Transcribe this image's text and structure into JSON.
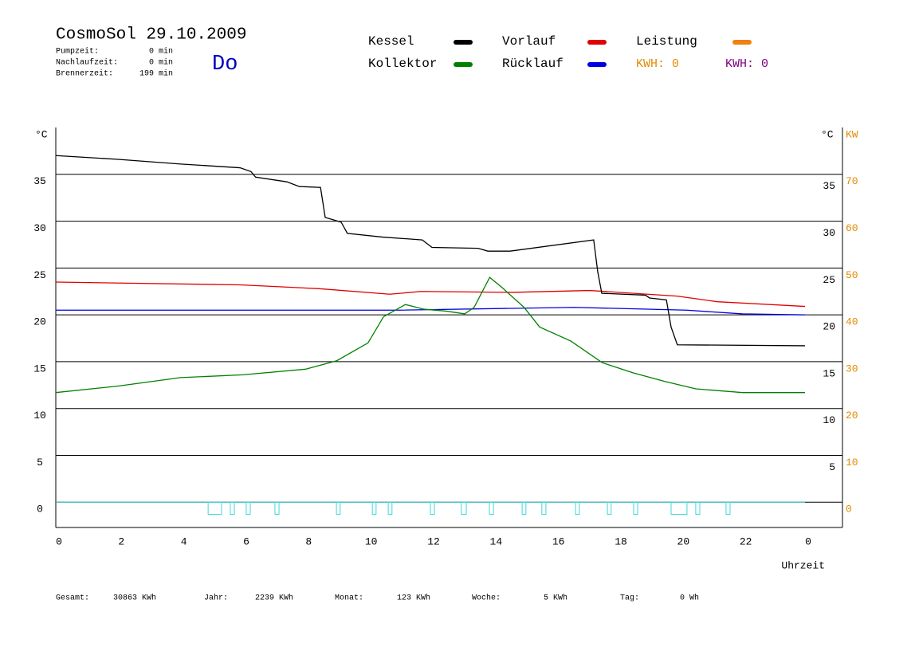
{
  "header": {
    "title": "CosmoSol 29.10.2009",
    "day": "Do",
    "stats": [
      {
        "label": "Pumpzeit:",
        "value": "0 min"
      },
      {
        "label": "Nachlaufzeit:",
        "value": "0 min"
      },
      {
        "label": "Brennerzeit:",
        "value": "199 min"
      }
    ]
  },
  "chart_data": {
    "type": "line",
    "y_label": "°C",
    "y2_label_left": "°C",
    "y2_label": "KW",
    "x_label": "Uhrzeit",
    "xlim": [
      0,
      25.2
    ],
    "xticks": [
      0,
      2,
      4,
      6,
      8,
      10,
      12,
      14,
      16,
      18,
      20,
      22,
      {
        "value": 24,
        "label": "0"
      }
    ],
    "ylim": [
      -2.7,
      40
    ],
    "yticks": [
      0,
      5,
      10,
      15,
      20,
      25,
      30,
      35
    ],
    "right_yticks": [
      5,
      10,
      15,
      20,
      25,
      30,
      35
    ],
    "y2lim": [
      -5.4,
      80
    ],
    "y2ticks": [
      0,
      10,
      20,
      30,
      40,
      50,
      60,
      70
    ],
    "y2_color": "#e08a00",
    "grid": true,
    "series": [
      {
        "name": "Kessel",
        "color": "#000000",
        "x": [
          0,
          2,
          4,
          5.9,
          6.25,
          6.4,
          7.4,
          7.8,
          8.48,
          8.63,
          9.14,
          9.34,
          10.47,
          11.74,
          12.05,
          13.53,
          13.84,
          14.55,
          17.23,
          17.36,
          17.49,
          18.89,
          19.02,
          19.56,
          19.71,
          19.91,
          24
        ],
        "values": [
          37.0,
          36.6,
          36.1,
          35.7,
          35.3,
          34.7,
          34.2,
          33.7,
          33.6,
          30.4,
          29.9,
          28.7,
          28.3,
          28.0,
          27.2,
          27.1,
          26.8,
          26.8,
          28.0,
          24.6,
          22.3,
          22.1,
          21.8,
          21.6,
          18.7,
          16.8,
          16.7
        ]
      },
      {
        "name": "Kollektor",
        "color": "#008000",
        "x": [
          0,
          2,
          4,
          6,
          8,
          9,
          10,
          10.5,
          11.2,
          11.8,
          12.5,
          13.1,
          13.4,
          13.9,
          14.3,
          15,
          15.5,
          16.5,
          17.5,
          18.5,
          19.5,
          20.5,
          22,
          24
        ],
        "values": [
          11.7,
          12.4,
          13.3,
          13.6,
          14.2,
          15.1,
          17.0,
          19.8,
          21.1,
          20.6,
          20.4,
          20.1,
          20.8,
          24.0,
          22.9,
          20.8,
          18.7,
          17.2,
          14.9,
          13.8,
          12.9,
          12.1,
          11.7,
          11.7
        ]
      },
      {
        "name": "Vorlauf",
        "color": "#e00000",
        "x": [
          0,
          5.9,
          8.4,
          10.7,
          11.7,
          14.6,
          17.1,
          19.9,
          21.2,
          24
        ],
        "values": [
          23.5,
          23.2,
          22.8,
          22.2,
          22.5,
          22.4,
          22.6,
          22.0,
          21.4,
          20.9
        ]
      },
      {
        "name": "Rücklauf",
        "color": "#0000e0",
        "x": [
          0,
          11,
          16.6,
          20.2,
          22,
          24
        ],
        "values": [
          20.5,
          20.5,
          20.8,
          20.5,
          20.1,
          20.0
        ]
      },
      {
        "name": "Leistung",
        "color": "#f08010",
        "axis": "y2",
        "x": [],
        "values": []
      }
    ],
    "annotations": [
      {
        "text": "KWH: 0",
        "color": "#e08a00"
      },
      {
        "text": "KWH: 0",
        "color": "#800080"
      }
    ],
    "pump": {
      "color": "#40d8d8",
      "low": -1.3,
      "intervals": [
        [
          4.88,
          5.31
        ],
        [
          5.59,
          5.72
        ],
        [
          6.1,
          6.23
        ],
        [
          7.02,
          7.15
        ],
        [
          8.99,
          9.11
        ],
        [
          10.14,
          10.26
        ],
        [
          10.65,
          10.77
        ],
        [
          12.0,
          12.13
        ],
        [
          12.99,
          13.15
        ],
        [
          13.89,
          14.02
        ],
        [
          14.94,
          15.06
        ],
        [
          15.57,
          15.7
        ],
        [
          16.65,
          16.77
        ],
        [
          17.67,
          17.79
        ],
        [
          18.51,
          18.64
        ],
        [
          19.71,
          20.22
        ],
        [
          20.5,
          20.63
        ],
        [
          21.47,
          21.6
        ]
      ]
    }
  },
  "footer": [
    {
      "label": "Gesamt:",
      "value": "30863 KWh"
    },
    {
      "label": "Jahr:",
      "value": "2239 KWh"
    },
    {
      "label": "Monat:",
      "value": "123 KWh"
    },
    {
      "label": "Woche:",
      "value": "5 KWh"
    },
    {
      "label": "Tag:",
      "value": "0 Wh"
    }
  ]
}
